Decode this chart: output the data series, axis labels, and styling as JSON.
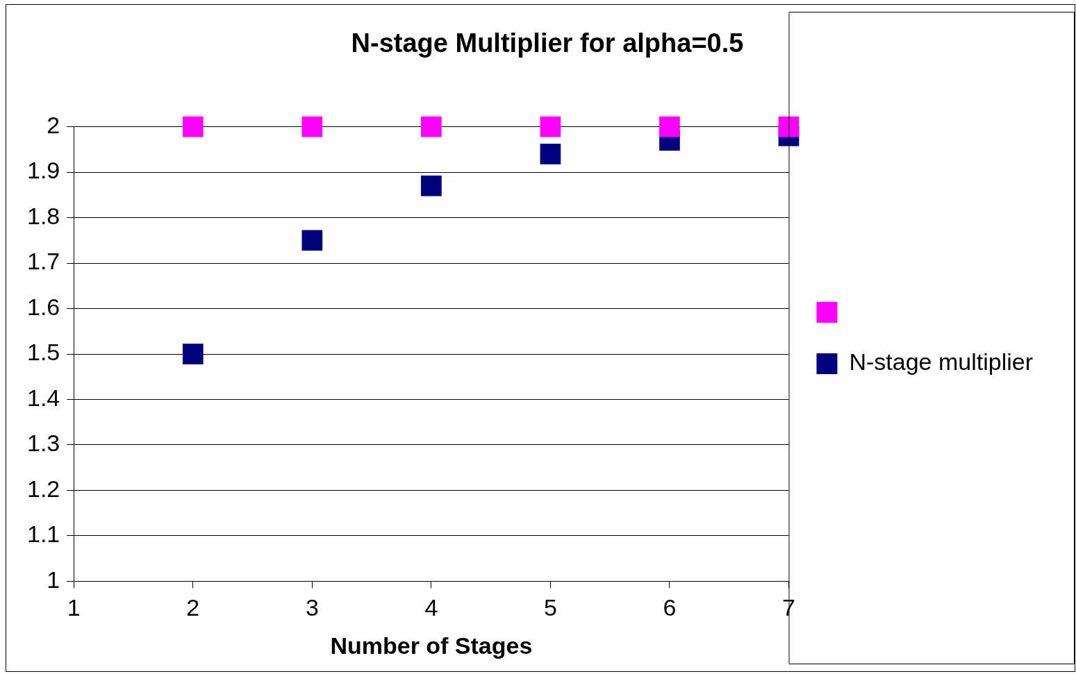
{
  "chart_data": {
    "type": "scatter",
    "title": "N-stage Multiplier for alpha=0.5",
    "xlabel": "Number of Stages",
    "x": [
      2,
      3,
      4,
      5,
      6,
      7
    ],
    "series": [
      {
        "name": "N-stage multiplier",
        "color": "#000080",
        "values": [
          1.5,
          1.75,
          1.87,
          1.94,
          1.97,
          1.98
        ]
      },
      {
        "color": "#ff00ff",
        "values": [
          2,
          2,
          2,
          2,
          2,
          2
        ]
      }
    ],
    "xlim": [
      1,
      7
    ],
    "xticks": [
      1,
      2,
      3,
      4,
      5,
      6,
      7
    ],
    "ylim": [
      1,
      2
    ],
    "yticks": [
      1,
      1.1,
      1.2,
      1.3,
      1.4,
      1.5,
      1.6,
      1.7,
      1.8,
      1.9,
      2
    ],
    "grid": "y",
    "legend": "right",
    "marker": "square"
  }
}
